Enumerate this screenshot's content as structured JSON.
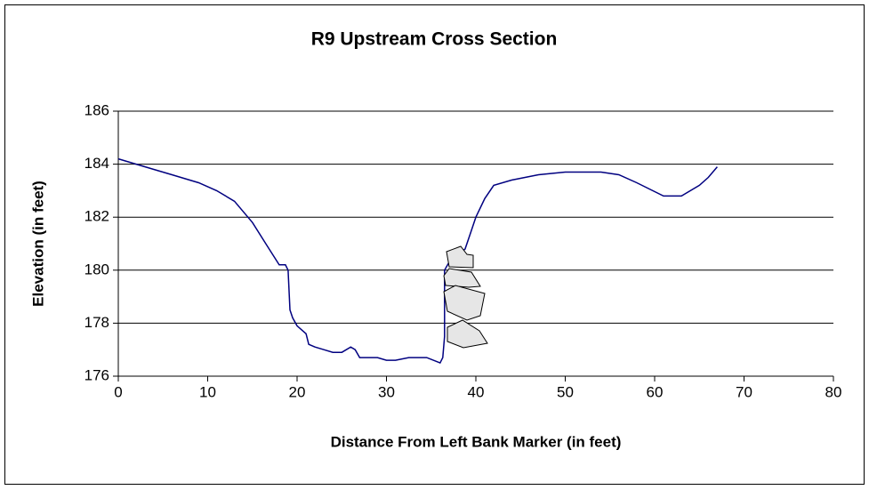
{
  "chart_data": {
    "type": "line",
    "title": "R9 Upstream Cross Section",
    "x_label": "Distance From Left Bank Marker (in feet)",
    "y_label": "Elevation (in feet)",
    "xlim": [
      0,
      80
    ],
    "xticks": [
      0,
      10,
      20,
      30,
      40,
      50,
      60,
      70,
      80
    ],
    "ylim": [
      176,
      186
    ],
    "yticks": [
      176,
      178,
      180,
      182,
      184,
      186
    ],
    "grid": true,
    "series": [
      {
        "color": "#000080",
        "x": [
          0,
          3,
          6,
          9,
          11,
          13,
          15,
          16.5,
          18,
          18.7,
          19,
          19.2,
          19.5,
          20,
          21,
          21.3,
          22,
          23,
          24,
          25,
          26,
          26.5,
          27,
          29,
          30,
          31,
          32.5,
          34.5,
          36,
          36.3,
          36.5,
          36.5,
          37,
          38.8,
          39.5,
          40,
          41,
          42,
          44,
          47,
          50,
          54,
          56,
          58,
          61,
          63,
          65,
          66,
          67
        ],
        "values": [
          184.2,
          183.9,
          183.6,
          183.3,
          183.0,
          182.6,
          181.8,
          181.0,
          180.2,
          180.2,
          180.0,
          178.5,
          178.2,
          177.9,
          177.6,
          177.2,
          177.1,
          177.0,
          176.9,
          176.9,
          177.1,
          177.0,
          176.7,
          176.7,
          176.6,
          176.6,
          176.7,
          176.7,
          176.5,
          176.7,
          177.5,
          180.0,
          180.3,
          180.8,
          181.5,
          182.0,
          182.7,
          183.2,
          183.4,
          183.6,
          183.7,
          183.7,
          183.6,
          183.3,
          182.8,
          182.8,
          183.2,
          183.5,
          183.9
        ]
      }
    ]
  }
}
